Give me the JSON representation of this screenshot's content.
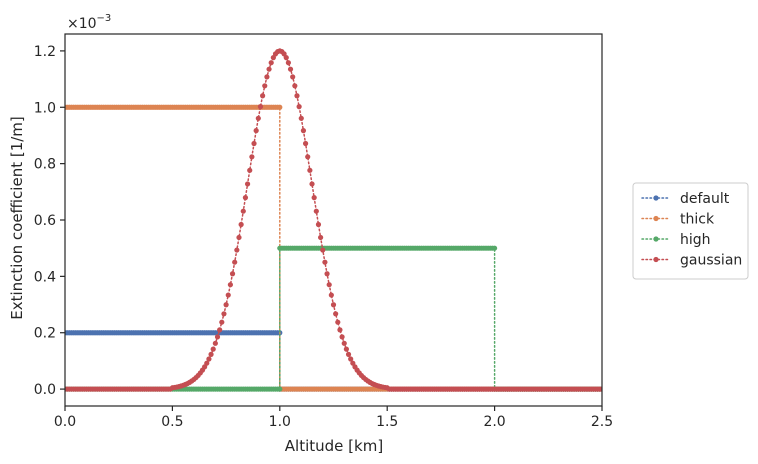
{
  "chart_data": {
    "type": "line",
    "xlabel": "Altitude [km]",
    "ylabel": "Extinction coefficient [1/m]",
    "xlim": [
      0.0,
      2.5
    ],
    "ylim": [
      -0.06,
      1.26
    ],
    "x_ticks": [
      "0.0",
      "0.5",
      "1.0",
      "1.5",
      "2.0",
      "2.5"
    ],
    "y_ticks": [
      "0.0",
      "0.2",
      "0.4",
      "0.6",
      "0.8",
      "1.0",
      "1.2"
    ],
    "y_scale_multiplier": {
      "base": "×10",
      "exponent": "−3"
    },
    "grid": false,
    "legend_position": "right-outside",
    "series": [
      {
        "name": "default",
        "color": "#4c72b0",
        "linestyle": "dotted",
        "marker": "circle",
        "segments": [
          {
            "x_start": 0.0,
            "x_end": 1.0,
            "y": 0.2
          },
          {
            "x_start": 1.0,
            "x_end": 2.5,
            "y": 0.0
          }
        ]
      },
      {
        "name": "thick",
        "color": "#dd8452",
        "linestyle": "dotted",
        "marker": "circle",
        "segments": [
          {
            "x_start": 0.0,
            "x_end": 1.0,
            "y": 1.0
          },
          {
            "x_start": 1.0,
            "x_end": 2.5,
            "y": 0.0
          }
        ]
      },
      {
        "name": "high",
        "color": "#55a868",
        "linestyle": "dotted",
        "marker": "circle",
        "segments": [
          {
            "x_start": 0.0,
            "x_end": 1.0,
            "y": 0.0
          },
          {
            "x_start": 1.0,
            "x_end": 2.0,
            "y": 0.5
          },
          {
            "x_start": 2.0,
            "x_end": 2.5,
            "y": 0.0
          }
        ]
      },
      {
        "name": "gaussian",
        "color": "#c44e52",
        "linestyle": "dotted",
        "marker": "circle",
        "gaussian": {
          "peak": 1.2,
          "center": 1.0,
          "sigma": 0.15,
          "x_start": 0.5,
          "x_end": 1.5
        }
      }
    ]
  }
}
